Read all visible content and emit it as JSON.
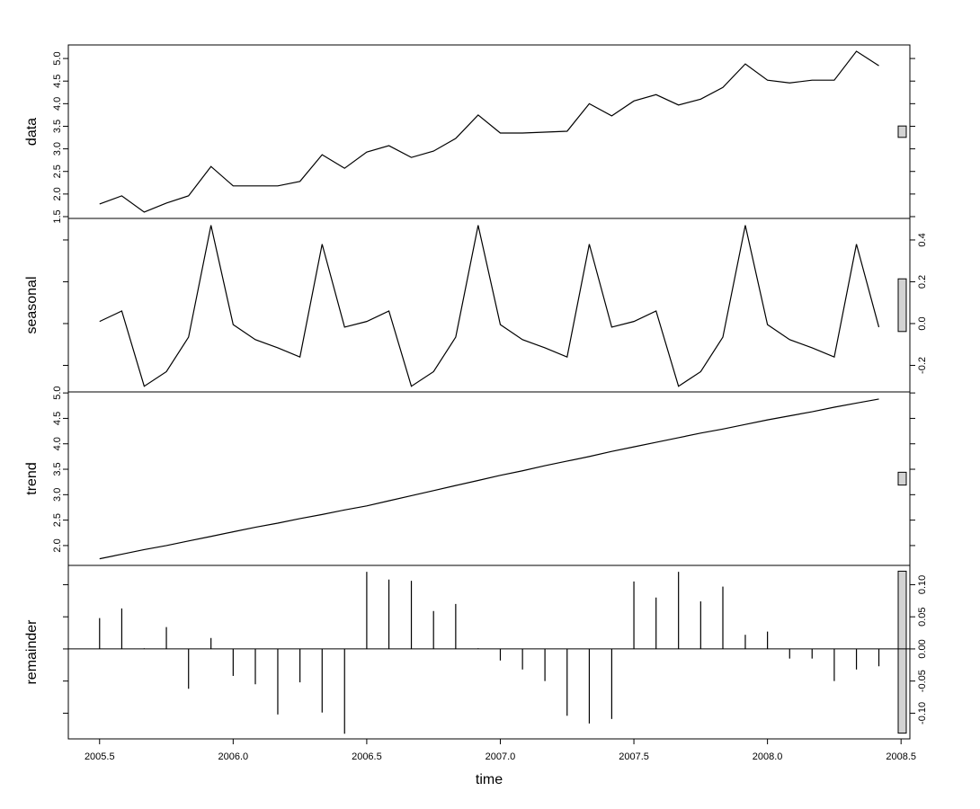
{
  "chart_data": [
    {
      "type": "line",
      "y_label": "data",
      "tick_side": "left",
      "x": [
        2005.5,
        2005.583,
        2005.667,
        2005.75,
        2005.833,
        2005.917,
        2006,
        2006.083,
        2006.167,
        2006.25,
        2006.333,
        2006.417,
        2006.5,
        2006.583,
        2006.667,
        2006.75,
        2006.833,
        2006.917,
        2007,
        2007.083,
        2007.167,
        2007.25,
        2007.333,
        2007.417,
        2007.5,
        2007.583,
        2007.667,
        2007.75,
        2007.833,
        2007.917,
        2008,
        2008.083,
        2008.167,
        2008.25,
        2008.333,
        2008.417
      ],
      "values": [
        1.78,
        1.96,
        1.6,
        1.8,
        1.96,
        2.61,
        2.18,
        2.18,
        2.18,
        2.28,
        2.87,
        2.57,
        2.93,
        3.07,
        2.81,
        2.95,
        3.23,
        3.75,
        3.35,
        3.35,
        3.37,
        3.39,
        4.0,
        3.73,
        4.06,
        4.2,
        3.97,
        4.1,
        4.36,
        4.88,
        4.52,
        4.46,
        4.52,
        4.52,
        5.16,
        4.84
      ],
      "color": "#000000",
      "xlim": [
        2005.383,
        2008.533
      ],
      "ylim": [
        1.46,
        5.3
      ],
      "yticks": [
        1.5,
        {
          "value": 2,
          "label": "2.0"
        },
        2.5,
        {
          "value": 3,
          "label": "3.0"
        },
        3.5,
        {
          "value": 4,
          "label": "4.0"
        },
        4.5,
        {
          "value": 5,
          "label": "5.0"
        }
      ]
    },
    {
      "type": "line",
      "y_label": "seasonal",
      "tick_side": "right",
      "x": [
        2005.5,
        2005.583,
        2005.667,
        2005.75,
        2005.833,
        2005.917,
        2006,
        2006.083,
        2006.167,
        2006.25,
        2006.333,
        2006.417,
        2006.5,
        2006.583,
        2006.667,
        2006.75,
        2006.833,
        2006.917,
        2007,
        2007.083,
        2007.167,
        2007.25,
        2007.333,
        2007.417,
        2007.5,
        2007.583,
        2007.667,
        2007.75,
        2007.833,
        2007.917,
        2008,
        2008.083,
        2008.167,
        2008.25,
        2008.333,
        2008.417
      ],
      "values": [
        0.01,
        0.06,
        -0.3,
        -0.23,
        -0.065,
        0.47,
        -0.005,
        -0.077,
        -0.116,
        -0.16,
        0.38,
        -0.017,
        0.01,
        0.06,
        -0.3,
        -0.23,
        -0.065,
        0.47,
        -0.005,
        -0.077,
        -0.116,
        -0.16,
        0.38,
        -0.017,
        0.01,
        0.06,
        -0.3,
        -0.23,
        -0.065,
        0.47,
        -0.005,
        -0.077,
        -0.116,
        -0.16,
        0.38,
        -0.017
      ],
      "color": "#000000",
      "xlim": [
        2005.383,
        2008.533
      ],
      "ylim": [
        -0.327,
        0.503
      ],
      "yticks": [
        -0.2,
        {
          "value": 0,
          "label": "0.0"
        },
        0.2,
        0.4
      ]
    },
    {
      "type": "line",
      "y_label": "trend",
      "tick_side": "left",
      "x": [
        2005.5,
        2005.583,
        2005.667,
        2005.75,
        2005.833,
        2005.917,
        2006,
        2006.083,
        2006.167,
        2006.25,
        2006.333,
        2006.417,
        2006.5,
        2006.583,
        2006.667,
        2006.75,
        2006.833,
        2006.917,
        2007,
        2007.083,
        2007.167,
        2007.25,
        2007.333,
        2007.417,
        2007.5,
        2007.583,
        2007.667,
        2007.75,
        2007.833,
        2007.917,
        2008,
        2008.083,
        2008.167,
        2008.25,
        2008.333,
        2008.417
      ],
      "values": [
        1.74,
        1.83,
        1.92,
        2.0,
        2.09,
        2.18,
        2.27,
        2.36,
        2.44,
        2.53,
        2.61,
        2.7,
        2.78,
        2.88,
        2.98,
        3.08,
        3.18,
        3.28,
        3.38,
        3.47,
        3.57,
        3.66,
        3.75,
        3.85,
        3.94,
        4.03,
        4.12,
        4.21,
        4.29,
        4.38,
        4.47,
        4.55,
        4.63,
        4.72,
        4.8,
        4.88
      ],
      "color": "#000000",
      "xlim": [
        2005.383,
        2008.533
      ],
      "ylim": [
        1.61,
        5.02
      ],
      "yticks": [
        {
          "value": 2,
          "label": "2.0"
        },
        2.5,
        {
          "value": 3,
          "label": "3.0"
        },
        3.5,
        {
          "value": 4,
          "label": "4.0"
        },
        4.5,
        {
          "value": 5,
          "label": "5.0"
        }
      ]
    },
    {
      "type": "bar",
      "y_label": "remainder",
      "tick_side": "right",
      "x_label": "time",
      "x": [
        2005.5,
        2005.583,
        2005.667,
        2005.75,
        2005.833,
        2005.917,
        2006,
        2006.083,
        2006.167,
        2006.25,
        2006.333,
        2006.417,
        2006.5,
        2006.583,
        2006.667,
        2006.75,
        2006.833,
        2006.917,
        2007,
        2007.083,
        2007.167,
        2007.25,
        2007.333,
        2007.417,
        2007.5,
        2007.583,
        2007.667,
        2007.75,
        2007.833,
        2007.917,
        2008,
        2008.083,
        2008.167,
        2008.25,
        2008.333,
        2008.417
      ],
      "values": [
        0.048,
        0.063,
        0.001,
        0.034,
        -0.062,
        0.017,
        -0.042,
        -0.055,
        -0.102,
        -0.052,
        -0.099,
        -0.132,
        0.12,
        0.108,
        0.106,
        0.059,
        0.07,
        0.001,
        -0.018,
        -0.032,
        -0.05,
        -0.104,
        -0.116,
        -0.109,
        0.105,
        0.08,
        0.12,
        0.074,
        0.097,
        0.022,
        0.027,
        -0.015,
        -0.015,
        -0.05,
        -0.032,
        -0.027
      ],
      "color": "#000000",
      "xlim": [
        2005.383,
        2008.533
      ],
      "ylim": [
        -0.14,
        0.13
      ],
      "yticks": [
        {
          "value": -0.1,
          "label": "-0.10"
        },
        {
          "value": -0.05,
          "label": "-0.05"
        },
        {
          "value": 0,
          "label": "0.00"
        },
        {
          "value": 0.05,
          "label": "0.05"
        },
        {
          "value": 0.1,
          "label": "0.10"
        }
      ],
      "xticks": [
        2005.5,
        {
          "value": 2006,
          "label": "2006.0"
        },
        2006.5,
        {
          "value": 2007,
          "label": "2007.0"
        },
        2007.5,
        {
          "value": 2008,
          "label": "2008.0"
        },
        2008.5
      ]
    }
  ]
}
